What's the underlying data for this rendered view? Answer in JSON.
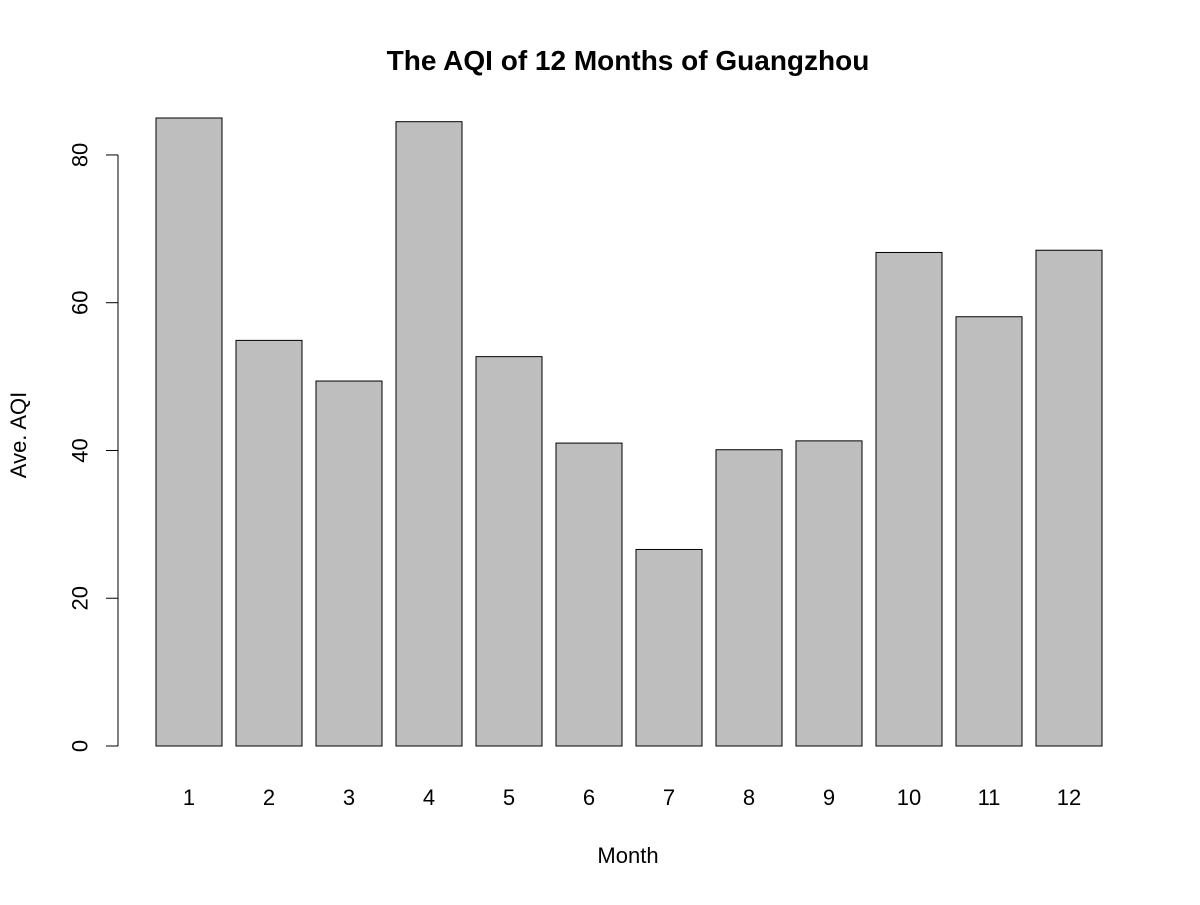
{
  "chart_data": {
    "type": "bar",
    "title": "The AQI of 12 Months of Guangzhou",
    "xlabel": "Month",
    "ylabel": "Ave. AQI",
    "categories": [
      "1",
      "2",
      "3",
      "4",
      "5",
      "6",
      "7",
      "8",
      "9",
      "10",
      "11",
      "12"
    ],
    "values": [
      85.0,
      54.9,
      49.4,
      84.5,
      52.7,
      41.0,
      26.6,
      40.1,
      41.3,
      66.8,
      58.1,
      67.1
    ],
    "ylim": [
      0,
      85
    ],
    "yticks": [
      0,
      20,
      40,
      60,
      80
    ],
    "ytick_labels": [
      "0",
      "20",
      "40",
      "60",
      "80"
    ],
    "bar_color": "#bebebe",
    "bar_edge_color": "#000000",
    "grid": false,
    "legend": "none"
  }
}
